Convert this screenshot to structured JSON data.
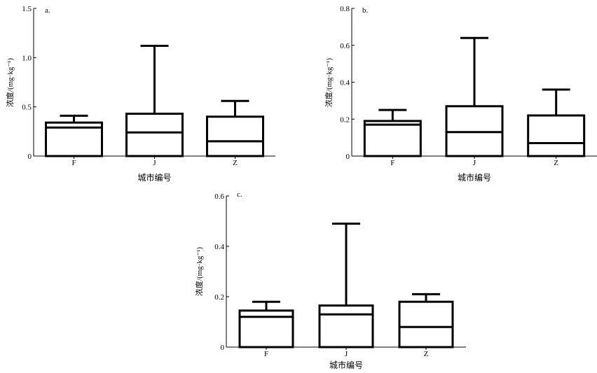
{
  "colors": {
    "stroke": "#000000",
    "background": "#ffffff"
  },
  "chart_data": [
    {
      "type": "box",
      "panel_label": "a.",
      "categories": [
        "F",
        "J",
        "Z"
      ],
      "xlabel": "城市编号",
      "ylabel": "浓度/(mg·kg⁻¹)",
      "ylim": [
        0,
        1.5
      ],
      "yticks": [
        "0",
        "0.5",
        "1.0",
        "1.5"
      ],
      "ytick_values": [
        0,
        0.5,
        1.0,
        1.5
      ],
      "boxes": [
        {
          "category": "F",
          "q1": 0,
          "median": 0.29,
          "q3": 0.34,
          "whisker_high": 0.41
        },
        {
          "category": "J",
          "q1": 0,
          "median": 0.24,
          "q3": 0.43,
          "whisker_high": 1.12
        },
        {
          "category": "Z",
          "q1": 0,
          "median": 0.15,
          "q3": 0.4,
          "whisker_high": 0.56
        }
      ]
    },
    {
      "type": "box",
      "panel_label": "b.",
      "categories": [
        "F",
        "J",
        "Z"
      ],
      "xlabel": "城市编号",
      "ylabel": "浓度/(mg·kg⁻¹)",
      "ylim": [
        0,
        0.8
      ],
      "yticks": [
        "0",
        "0.2",
        "0.4",
        "0.6",
        "0.8"
      ],
      "ytick_values": [
        0,
        0.2,
        0.4,
        0.6,
        0.8
      ],
      "boxes": [
        {
          "category": "F",
          "q1": 0,
          "median": 0.17,
          "q3": 0.19,
          "whisker_high": 0.25
        },
        {
          "category": "J",
          "q1": 0,
          "median": 0.13,
          "q3": 0.27,
          "whisker_high": 0.64
        },
        {
          "category": "Z",
          "q1": 0,
          "median": 0.07,
          "q3": 0.22,
          "whisker_high": 0.36
        }
      ]
    },
    {
      "type": "box",
      "panel_label": "c.",
      "categories": [
        "F",
        "J",
        "Z"
      ],
      "xlabel": "城市编号",
      "ylabel": "浓度/(mg·kg⁻¹)",
      "ylim": [
        0,
        0.6
      ],
      "yticks": [
        "0",
        "0.2",
        "0.4",
        "0.6"
      ],
      "ytick_values": [
        0,
        0.2,
        0.4,
        0.6
      ],
      "boxes": [
        {
          "category": "F",
          "q1": 0,
          "median": 0.12,
          "q3": 0.145,
          "whisker_high": 0.18
        },
        {
          "category": "J",
          "q1": 0,
          "median": 0.13,
          "q3": 0.165,
          "whisker_high": 0.49
        },
        {
          "category": "Z",
          "q1": 0,
          "median": 0.08,
          "q3": 0.18,
          "whisker_high": 0.21
        }
      ]
    }
  ]
}
